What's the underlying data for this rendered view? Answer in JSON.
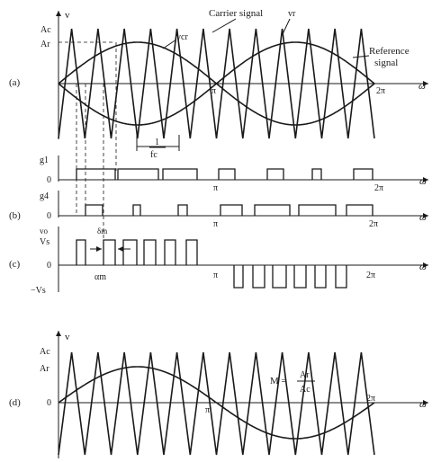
{
  "panels": {
    "a": {
      "label": "(a)",
      "y_axis_label": "v",
      "x_axis_label": "ω",
      "tick_labels": {
        "ac": "Ac",
        "ar": "Ar",
        "pi": "π",
        "two_pi": "2π"
      },
      "annotations": {
        "carrier": "Carrier signal",
        "vcr": "vcr",
        "vr": "vr",
        "reference": "Reference\nsignal",
        "period_num": "1",
        "period_den": "fc"
      },
      "carrier_cycles": 12,
      "reference_cycles": 2
    },
    "gate_signals": {
      "g1": {
        "label": "g1",
        "zero": "0",
        "pi": "π",
        "two_pi": "2π",
        "x_axis_label": "ω"
      },
      "g4": {
        "label": "g4",
        "zero": "0",
        "pi": "π",
        "two_pi": "2π",
        "x_axis_label": "ω"
      },
      "panel_label": "(b)"
    },
    "c": {
      "label": "(c)",
      "y_axis_label": "vo",
      "vs": "Vs",
      "minus_vs": "−Vs",
      "zero": "0",
      "delta_m": "δm",
      "alpha_m": "αm",
      "pi": "π",
      "two_pi": "2π",
      "x_axis_label": "ω"
    },
    "d": {
      "label": "(d)",
      "y_axis_label": "v",
      "ac": "Ac",
      "ar": "Ar",
      "zero": "0",
      "pi": "π",
      "two_pi": "2π",
      "x_axis_label": "ω",
      "modulation": {
        "lhs": "M =",
        "num": "Ar",
        "den": "Ac"
      },
      "carrier_cycles": 12,
      "reference_cycles": 1
    }
  },
  "colors": {
    "ink": "#1a1a1a",
    "background": "#ffffff"
  }
}
